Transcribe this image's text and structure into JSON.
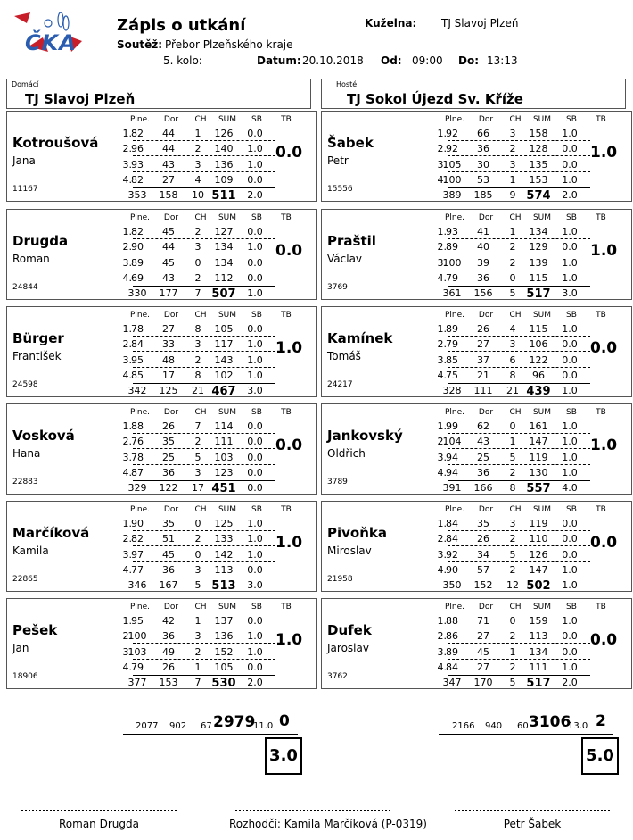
{
  "header": {
    "title": "Zápis o utkání",
    "kuzelna_label": "Kuželna:",
    "kuzelna": "TJ Slavoj Plzeň",
    "soutez_label": "Soutěž:",
    "soutez": "Přebor Plzeňského kraje",
    "kolo": "5. kolo:",
    "datum_label": "Datum:",
    "datum": "20.10.2018",
    "od_label": "Od:",
    "od": "09:00",
    "do_label": "Do:",
    "do": "13:13"
  },
  "logo": {
    "text": "ČKA"
  },
  "home": {
    "label": "Domácí",
    "name": "TJ Slavoj Plzeň"
  },
  "away": {
    "label": "Hosté",
    "name": "TJ Sokol Újezd Sv. Kříže"
  },
  "col_headers": [
    "Plne.",
    "Dor",
    "CH",
    "SUM",
    "SB",
    "TB"
  ],
  "row_nums": [
    "1.",
    "2.",
    "3.",
    "4."
  ],
  "home_players": [
    {
      "surname": "Kotroušová",
      "firstname": "Jana",
      "id": "11167",
      "tb": "0.0",
      "rows": [
        [
          "82",
          "44",
          "1",
          "126",
          "0.0"
        ],
        [
          "96",
          "44",
          "2",
          "140",
          "1.0"
        ],
        [
          "93",
          "43",
          "3",
          "136",
          "1.0"
        ],
        [
          "82",
          "27",
          "4",
          "109",
          "0.0"
        ]
      ],
      "total": [
        "353",
        "158",
        "10",
        "511",
        "2.0"
      ]
    },
    {
      "surname": "Drugda",
      "firstname": "Roman",
      "id": "24844",
      "tb": "0.0",
      "rows": [
        [
          "82",
          "45",
          "2",
          "127",
          "0.0"
        ],
        [
          "90",
          "44",
          "3",
          "134",
          "1.0"
        ],
        [
          "89",
          "45",
          "0",
          "134",
          "0.0"
        ],
        [
          "69",
          "43",
          "2",
          "112",
          "0.0"
        ]
      ],
      "total": [
        "330",
        "177",
        "7",
        "507",
        "1.0"
      ]
    },
    {
      "surname": "Bürger",
      "firstname": "František",
      "id": "24598",
      "tb": "1.0",
      "rows": [
        [
          "78",
          "27",
          "8",
          "105",
          "0.0"
        ],
        [
          "84",
          "33",
          "3",
          "117",
          "1.0"
        ],
        [
          "95",
          "48",
          "2",
          "143",
          "1.0"
        ],
        [
          "85",
          "17",
          "8",
          "102",
          "1.0"
        ]
      ],
      "total": [
        "342",
        "125",
        "21",
        "467",
        "3.0"
      ]
    },
    {
      "surname": "Vosková",
      "firstname": "Hana",
      "id": "22883",
      "tb": "0.0",
      "rows": [
        [
          "88",
          "26",
          "7",
          "114",
          "0.0"
        ],
        [
          "76",
          "35",
          "2",
          "111",
          "0.0"
        ],
        [
          "78",
          "25",
          "5",
          "103",
          "0.0"
        ],
        [
          "87",
          "36",
          "3",
          "123",
          "0.0"
        ]
      ],
      "total": [
        "329",
        "122",
        "17",
        "451",
        "0.0"
      ]
    },
    {
      "surname": "Marčíková",
      "firstname": "Kamila",
      "id": "22865",
      "tb": "1.0",
      "rows": [
        [
          "90",
          "35",
          "0",
          "125",
          "1.0"
        ],
        [
          "82",
          "51",
          "2",
          "133",
          "1.0"
        ],
        [
          "97",
          "45",
          "0",
          "142",
          "1.0"
        ],
        [
          "77",
          "36",
          "3",
          "113",
          "0.0"
        ]
      ],
      "total": [
        "346",
        "167",
        "5",
        "513",
        "3.0"
      ]
    },
    {
      "surname": "Pešek",
      "firstname": "Jan",
      "id": "18906",
      "tb": "1.0",
      "rows": [
        [
          "95",
          "42",
          "1",
          "137",
          "0.0"
        ],
        [
          "100",
          "36",
          "3",
          "136",
          "1.0"
        ],
        [
          "103",
          "49",
          "2",
          "152",
          "1.0"
        ],
        [
          "79",
          "26",
          "1",
          "105",
          "0.0"
        ]
      ],
      "total": [
        "377",
        "153",
        "7",
        "530",
        "2.0"
      ]
    }
  ],
  "away_players": [
    {
      "surname": "Šabek",
      "firstname": "Petr",
      "id": "15556",
      "tb": "1.0",
      "rows": [
        [
          "92",
          "66",
          "3",
          "158",
          "1.0"
        ],
        [
          "92",
          "36",
          "2",
          "128",
          "0.0"
        ],
        [
          "105",
          "30",
          "3",
          "135",
          "0.0"
        ],
        [
          "100",
          "53",
          "1",
          "153",
          "1.0"
        ]
      ],
      "total": [
        "389",
        "185",
        "9",
        "574",
        "2.0"
      ]
    },
    {
      "surname": "Praštil",
      "firstname": "Václav",
      "id": "3769",
      "tb": "1.0",
      "rows": [
        [
          "93",
          "41",
          "1",
          "134",
          "1.0"
        ],
        [
          "89",
          "40",
          "2",
          "129",
          "0.0"
        ],
        [
          "100",
          "39",
          "2",
          "139",
          "1.0"
        ],
        [
          "79",
          "36",
          "0",
          "115",
          "1.0"
        ]
      ],
      "total": [
        "361",
        "156",
        "5",
        "517",
        "3.0"
      ]
    },
    {
      "surname": "Kamínek",
      "firstname": "Tomáš",
      "id": "24217",
      "tb": "0.0",
      "rows": [
        [
          "89",
          "26",
          "4",
          "115",
          "1.0"
        ],
        [
          "79",
          "27",
          "3",
          "106",
          "0.0"
        ],
        [
          "85",
          "37",
          "6",
          "122",
          "0.0"
        ],
        [
          "75",
          "21",
          "8",
          "96",
          "0.0"
        ]
      ],
      "total": [
        "328",
        "111",
        "21",
        "439",
        "1.0"
      ]
    },
    {
      "surname": "Jankovský",
      "firstname": "Oldřich",
      "id": "3789",
      "tb": "1.0",
      "rows": [
        [
          "99",
          "62",
          "0",
          "161",
          "1.0"
        ],
        [
          "104",
          "43",
          "1",
          "147",
          "1.0"
        ],
        [
          "94",
          "25",
          "5",
          "119",
          "1.0"
        ],
        [
          "94",
          "36",
          "2",
          "130",
          "1.0"
        ]
      ],
      "total": [
        "391",
        "166",
        "8",
        "557",
        "4.0"
      ]
    },
    {
      "surname": "Pivoňka",
      "firstname": "Miroslav",
      "id": "21958",
      "tb": "0.0",
      "rows": [
        [
          "84",
          "35",
          "3",
          "119",
          "0.0"
        ],
        [
          "84",
          "26",
          "2",
          "110",
          "0.0"
        ],
        [
          "92",
          "34",
          "5",
          "126",
          "0.0"
        ],
        [
          "90",
          "57",
          "2",
          "147",
          "1.0"
        ]
      ],
      "total": [
        "350",
        "152",
        "12",
        "502",
        "1.0"
      ]
    },
    {
      "surname": "Dufek",
      "firstname": "Jaroslav",
      "id": "3762",
      "tb": "0.0",
      "rows": [
        [
          "88",
          "71",
          "0",
          "159",
          "1.0"
        ],
        [
          "86",
          "27",
          "2",
          "113",
          "0.0"
        ],
        [
          "89",
          "45",
          "1",
          "134",
          "0.0"
        ],
        [
          "84",
          "27",
          "2",
          "111",
          "1.0"
        ]
      ],
      "total": [
        "347",
        "170",
        "5",
        "517",
        "2.0"
      ]
    }
  ],
  "home_total": {
    "plne": "2077",
    "dor": "902",
    "ch": "67",
    "sum": "2979",
    "sb": "11.0",
    "tb": "0",
    "points": "3.0"
  },
  "away_total": {
    "plne": "2166",
    "dor": "940",
    "ch": "60",
    "sum": "3106",
    "sb": "13.0",
    "tb": "2",
    "points": "5.0"
  },
  "signatures": {
    "home": "Roman Drugda",
    "referee": "Rozhodčí: Kamila Marčíková (P-0319)",
    "away": "Petr Šabek"
  }
}
